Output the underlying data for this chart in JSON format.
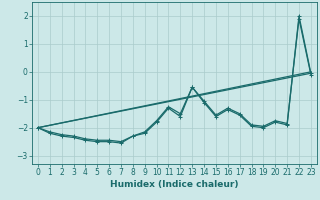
{
  "title": "",
  "xlabel": "Humidex (Indice chaleur)",
  "bg_color": "#cce8e8",
  "line_color": "#1a6b6b",
  "grid_color": "#aacccc",
  "xlim": [
    -0.5,
    23.5
  ],
  "ylim": [
    -3.3,
    2.5
  ],
  "xticks": [
    0,
    1,
    2,
    3,
    4,
    5,
    6,
    7,
    8,
    9,
    10,
    11,
    12,
    13,
    14,
    15,
    16,
    17,
    18,
    19,
    20,
    21,
    22,
    23
  ],
  "yticks": [
    -3,
    -2,
    -1,
    0,
    1,
    2
  ],
  "lines": [
    {
      "x": [
        0,
        1,
        2,
        3,
        4,
        5,
        6,
        7,
        8,
        9,
        10,
        11,
        12,
        13,
        14,
        15,
        16,
        17,
        18,
        19,
        20,
        21,
        22,
        23
      ],
      "y": [
        -2.0,
        -2.2,
        -2.3,
        -2.35,
        -2.45,
        -2.5,
        -2.5,
        -2.55,
        -2.3,
        -2.2,
        -1.8,
        -1.3,
        -1.6,
        -0.55,
        -1.1,
        -1.6,
        -1.35,
        -1.55,
        -1.95,
        -2.0,
        -1.8,
        -1.9,
        2.0,
        -0.05
      ],
      "marker": true
    },
    {
      "x": [
        0,
        1,
        2,
        3,
        4,
        5,
        6,
        7,
        8,
        9,
        10,
        11,
        12,
        13,
        14,
        15,
        16,
        17,
        18,
        19,
        20,
        21,
        22,
        23
      ],
      "y": [
        -2.0,
        -2.15,
        -2.25,
        -2.3,
        -2.4,
        -2.45,
        -2.45,
        -2.5,
        -2.3,
        -2.15,
        -1.75,
        -1.25,
        -1.5,
        -0.55,
        -1.05,
        -1.55,
        -1.3,
        -1.5,
        -1.9,
        -1.95,
        -1.75,
        -1.85,
        1.9,
        -0.1
      ],
      "marker": true
    },
    {
      "x": [
        0,
        23
      ],
      "y": [
        -2.0,
        -0.05
      ],
      "marker": false
    },
    {
      "x": [
        0,
        23
      ],
      "y": [
        -2.0,
        0.0
      ],
      "marker": false
    }
  ],
  "markersize": 3.5,
  "linewidth": 0.9,
  "xlabel_fontsize": 6.5,
  "tick_fontsize": 5.5
}
